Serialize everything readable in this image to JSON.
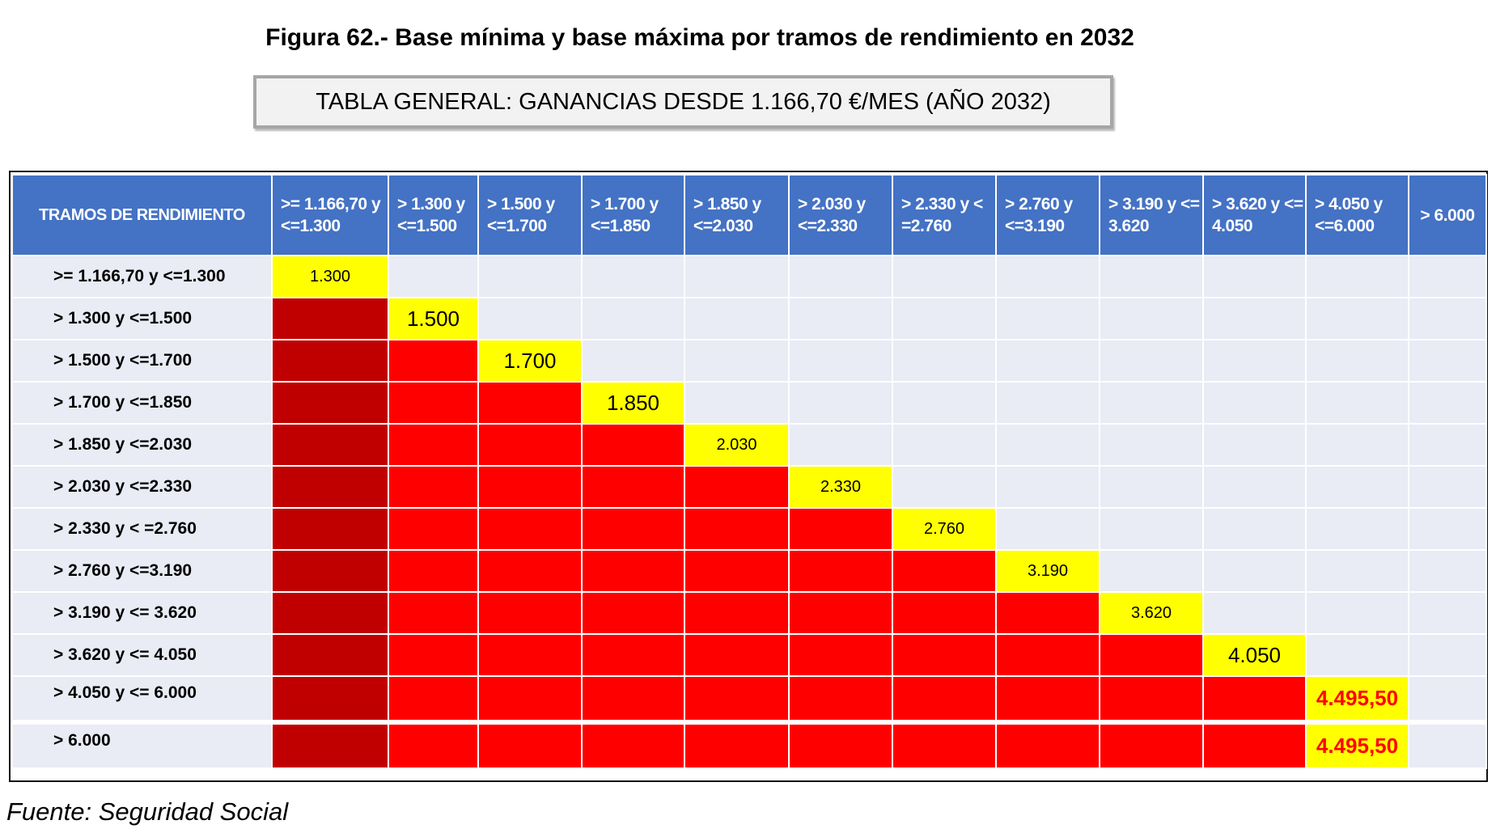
{
  "title": "Figura 62.- Base mínima y base máxima por tramos de rendimiento en 2032",
  "subtitle": "TABLA GENERAL: GANANCIAS DESDE 1.166,70 €/MES (AÑO 2032)",
  "source": "Fuente: Seguridad Social",
  "colors": {
    "header": "#4472c4",
    "first_col_fill": "#c00000",
    "fill": "#ff0000",
    "diagonal": "#ffff00",
    "empty": "#e9ebf5"
  },
  "table": {
    "corner_header": "TRAMOS DE RENDIMIENTO",
    "columns": [
      ">= 1.166,70 y <=1.300",
      "> 1.300 y <=1.500",
      "> 1.500 y <=1.700",
      "> 1.700 y <=1.850",
      "> 1.850 y <=2.030",
      "> 2.030 y <=2.330",
      "> 2.330 y < =2.760",
      "> 2.760 y <=3.190",
      "> 3.190 y <= 3.620",
      "> 3.620 y <= 4.050",
      "> 4.050 y <=6.000",
      "> 6.000"
    ],
    "rows": [
      {
        "label": ">= 1.166,70 y <=1.300",
        "value": "1.300",
        "col": 0,
        "filled": 0
      },
      {
        "label": "> 1.300 y <=1.500",
        "value": "1.500",
        "col": 1,
        "filled": 1
      },
      {
        "label": "> 1.500 y <=1.700",
        "value": "1.700",
        "col": 2,
        "filled": 2
      },
      {
        "label": "> 1.700 y <=1.850",
        "value": "1.850",
        "col": 3,
        "filled": 3
      },
      {
        "label": "> 1.850 y <=2.030",
        "value": "2.030",
        "col": 4,
        "filled": 4
      },
      {
        "label": "> 2.030 y <=2.330",
        "value": "2.330",
        "col": 5,
        "filled": 5
      },
      {
        "label": "> 2.330 y < =2.760",
        "value": "2.760",
        "col": 6,
        "filled": 6
      },
      {
        "label": "> 2.760 y <=3.190",
        "value": "3.190",
        "col": 7,
        "filled": 7
      },
      {
        "label": "> 3.190 y <= 3.620",
        "value": "3.620",
        "col": 8,
        "filled": 8
      },
      {
        "label": "> 3.620 y <= 4.050",
        "value": "4.050",
        "col": 9,
        "filled": 9
      },
      {
        "label": "> 4.050 y <= 6.000",
        "value": "4.495,50",
        "col": 10,
        "filled": 10
      },
      {
        "label": "> 6.000",
        "value": "4.495,50",
        "col": 10,
        "filled": 10
      }
    ]
  }
}
